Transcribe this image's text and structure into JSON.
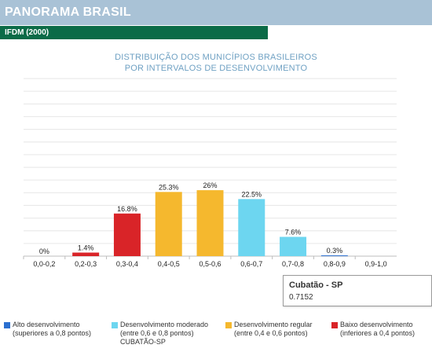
{
  "header": {
    "title": "PANORAMA BRASIL",
    "subtitle": "IFDM (2000)"
  },
  "colors": {
    "header_bg": "#a9c2d6",
    "subbar_bg": "#0b6b47",
    "high": "#2b6fd0",
    "moderate": "#6dd6f0",
    "regular": "#f5b82e",
    "low": "#d92428"
  },
  "chart_data": {
    "type": "bar",
    "title_lines": [
      "DISTRIBUIÇÃO DOS MUNICÍPIOS BRASILEIROS",
      "POR INTERVALOS DE DESENVOLVIMENTO"
    ],
    "categories": [
      "0,0-0,2",
      "0,2-0,3",
      "0,3-0,4",
      "0,4-0,5",
      "0,5-0,6",
      "0,6-0,7",
      "0,7-0,8",
      "0,8-0,9",
      "0,9-1,0"
    ],
    "values": [
      0,
      1.4,
      16.8,
      25.3,
      26,
      22.5,
      7.6,
      0.3,
      null
    ],
    "value_labels": [
      "0%",
      "1.4%",
      "16.8%",
      "25.3%",
      "26%",
      "22.5%",
      "7.6%",
      "0.3%",
      ""
    ],
    "bar_colors": [
      "low",
      "low",
      "low",
      "regular",
      "regular",
      "moderate",
      "moderate",
      "high",
      "high"
    ],
    "grid": true,
    "legend_position": "bottom",
    "tooltip": {
      "title": "Cubatão - SP",
      "value": "0.7152"
    }
  },
  "legend": [
    {
      "color": "high",
      "line1": "Alto desenvolvimento",
      "line2": "(superiores a 0,8 pontos)",
      "line3": ""
    },
    {
      "color": "moderate",
      "line1": "Desenvolvimento moderado",
      "line2": "(entre 0,6 e 0,8 pontos)",
      "line3": "CUBATÃO-SP"
    },
    {
      "color": "regular",
      "line1": "Desenvolvimento regular",
      "line2": "(entre 0,4 e 0,6 pontos)",
      "line3": ""
    },
    {
      "color": "low",
      "line1": "Baixo desenvolvimento",
      "line2": "(inferiores a 0,4 pontos)",
      "line3": ""
    }
  ]
}
